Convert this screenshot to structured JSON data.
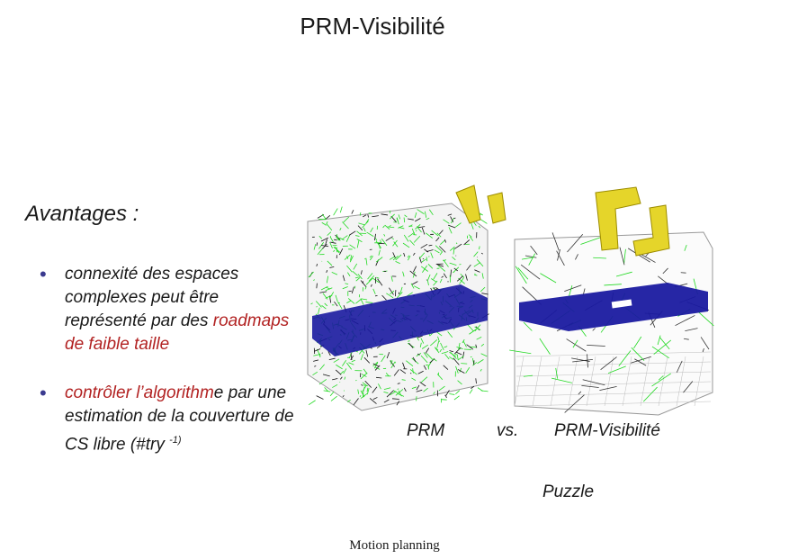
{
  "title": "PRM-Visibilité",
  "avantages": "Avantages :",
  "bullet1": {
    "part1": "connexité des espaces complexes peut être représenté par des ",
    "part2_red": "roadmaps de faible taille"
  },
  "bullet2": {
    "part1_red": "contrôler  l’algorithm",
    "part2": "e par une  estimation de la couverture de CS libre (#try ",
    "sup": "-1)"
  },
  "caption": {
    "left": "PRM",
    "mid": "vs.",
    "right": "PRM-Visibilité"
  },
  "puzzle": "Puzzle",
  "footer": "Motion planning"
}
